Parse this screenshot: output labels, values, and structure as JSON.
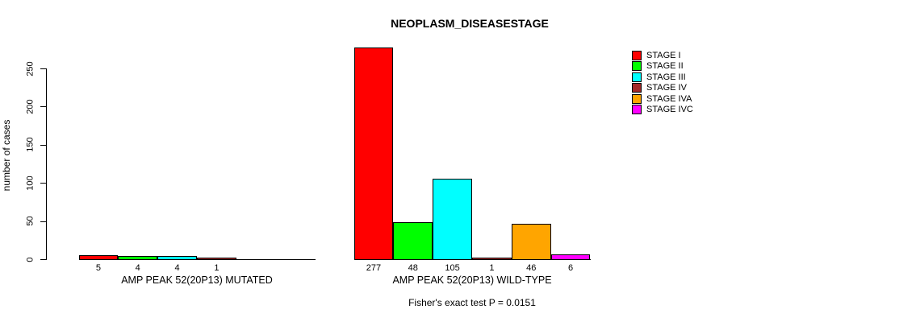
{
  "chart_data": {
    "type": "bar",
    "title": "NEOPLASM_DISEASESTAGE",
    "ylabel": "number of cases",
    "xlabel": "",
    "ylim": [
      0,
      250
    ],
    "yticks": [
      0,
      50,
      100,
      150,
      200,
      250
    ],
    "grid": false,
    "legend_position": "right",
    "stages": [
      {
        "name": "STAGE I",
        "color": "#FF0000"
      },
      {
        "name": "STAGE II",
        "color": "#00FF00"
      },
      {
        "name": "STAGE III",
        "color": "#00FFFF"
      },
      {
        "name": "STAGE IV",
        "color": "#A52A2A"
      },
      {
        "name": "STAGE IVA",
        "color": "#FFA500"
      },
      {
        "name": "STAGE IVC",
        "color": "#FF00FF"
      }
    ],
    "categories": [
      "STAGE I",
      "STAGE II",
      "STAGE III",
      "STAGE IV",
      "STAGE IVA",
      "STAGE IVC"
    ],
    "groups": [
      {
        "label": "AMP PEAK 52(20P13) MUTATED",
        "values": [
          5,
          4,
          4,
          1,
          0,
          0
        ]
      },
      {
        "label": "AMP PEAK 52(20P13) WILD-TYPE",
        "values": [
          277,
          48,
          105,
          1,
          46,
          6
        ]
      }
    ],
    "footnote": "Fisher's exact test P = 0.0151"
  }
}
